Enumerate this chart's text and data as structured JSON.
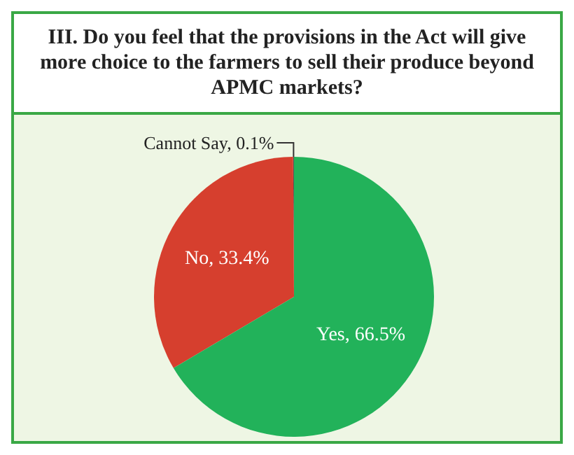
{
  "chart_data": {
    "type": "pie",
    "title": "III. Do you feel that the provisions in the Act will give more choice to the farmers to sell their produce beyond APMC markets?",
    "categories": [
      "Cannot Say",
      "No",
      "Yes"
    ],
    "values": [
      0.1,
      33.4,
      66.5
    ],
    "value_labels": [
      "0.1%",
      "33.4%",
      "66.5%"
    ],
    "colors": [
      "#555555",
      "#d63f2e",
      "#22b25a"
    ],
    "legend": false
  }
}
